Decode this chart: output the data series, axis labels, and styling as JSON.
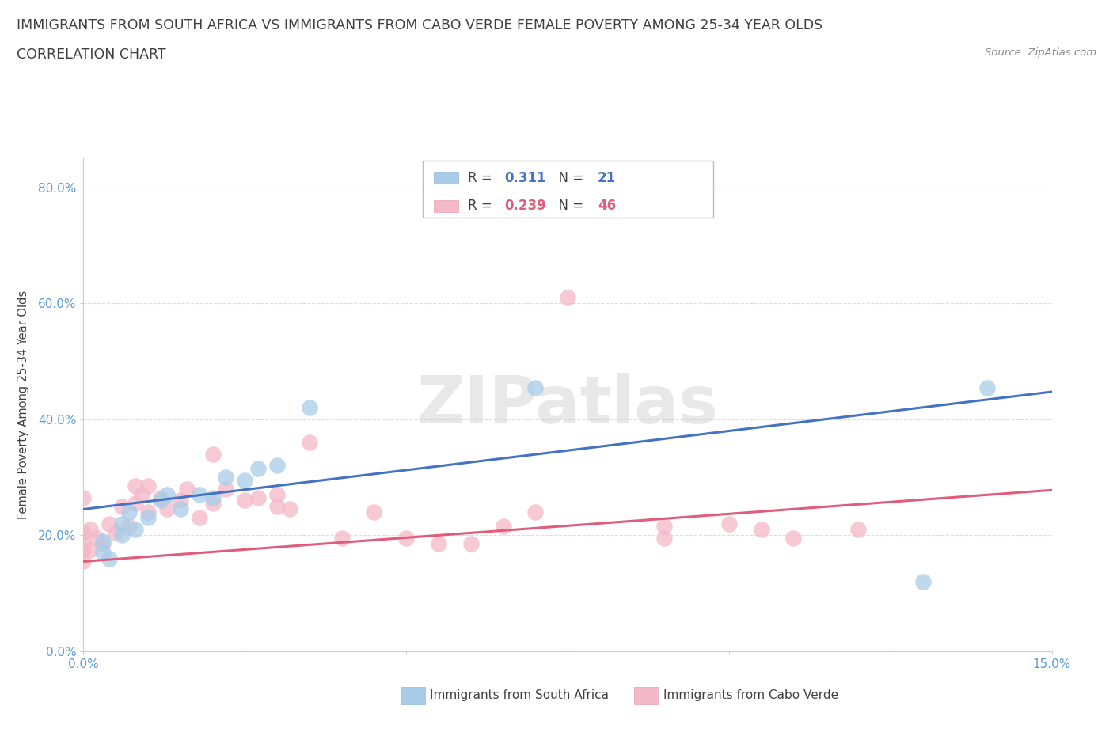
{
  "title_line1": "IMMIGRANTS FROM SOUTH AFRICA VS IMMIGRANTS FROM CABO VERDE FEMALE POVERTY AMONG 25-34 YEAR OLDS",
  "title_line2": "CORRELATION CHART",
  "source": "Source: ZipAtlas.com",
  "ylabel": "Female Poverty Among 25-34 Year Olds",
  "xlim": [
    0.0,
    0.15
  ],
  "ylim": [
    0.0,
    0.85
  ],
  "yticks": [
    0.0,
    0.2,
    0.4,
    0.6,
    0.8
  ],
  "ytick_labels": [
    "0.0%",
    "20.0%",
    "40.0%",
    "60.0%",
    "80.0%"
  ],
  "watermark": "ZIPatlas",
  "south_africa_color": "#A8CCE8",
  "cabo_verde_color": "#F4B8C8",
  "south_africa_line_color": "#4472C4",
  "cabo_verde_line_color": "#E05C7A",
  "sa_x": [
    0.003,
    0.003,
    0.004,
    0.006,
    0.006,
    0.007,
    0.008,
    0.01,
    0.012,
    0.013,
    0.015,
    0.018,
    0.02,
    0.022,
    0.025,
    0.027,
    0.03,
    0.035,
    0.07,
    0.13,
    0.14
  ],
  "sa_y": [
    0.17,
    0.19,
    0.16,
    0.2,
    0.22,
    0.24,
    0.21,
    0.23,
    0.26,
    0.27,
    0.245,
    0.27,
    0.265,
    0.3,
    0.295,
    0.315,
    0.32,
    0.42,
    0.455,
    0.12,
    0.455
  ],
  "cv_x": [
    0.0,
    0.0,
    0.0,
    0.0,
    0.0,
    0.001,
    0.001,
    0.002,
    0.003,
    0.004,
    0.005,
    0.006,
    0.007,
    0.008,
    0.008,
    0.009,
    0.01,
    0.01,
    0.012,
    0.013,
    0.015,
    0.016,
    0.018,
    0.02,
    0.02,
    0.022,
    0.025,
    0.027,
    0.03,
    0.03,
    0.032,
    0.035,
    0.04,
    0.045,
    0.05,
    0.055,
    0.06,
    0.065,
    0.07,
    0.075,
    0.09,
    0.09,
    0.1,
    0.105,
    0.11,
    0.12
  ],
  "cv_y": [
    0.155,
    0.175,
    0.185,
    0.205,
    0.265,
    0.175,
    0.21,
    0.195,
    0.185,
    0.22,
    0.205,
    0.25,
    0.215,
    0.255,
    0.285,
    0.27,
    0.24,
    0.285,
    0.265,
    0.245,
    0.26,
    0.28,
    0.23,
    0.255,
    0.34,
    0.28,
    0.26,
    0.265,
    0.25,
    0.27,
    0.245,
    0.36,
    0.195,
    0.24,
    0.195,
    0.185,
    0.185,
    0.215,
    0.24,
    0.61,
    0.195,
    0.215,
    0.22,
    0.21,
    0.195,
    0.21
  ],
  "background_color": "#FFFFFF",
  "grid_color": "#DDDDDD",
  "title_fontsize": 12.5,
  "axis_label_fontsize": 10.5,
  "tick_fontsize": 11,
  "tick_color": "#5B9BD5",
  "title_color": "#404040",
  "source_color": "#888888",
  "legend_text_color": "#404040",
  "legend_value_color": "#4472C4",
  "sa_line_intercept": 0.245,
  "sa_line_slope": 1.35,
  "cv_line_intercept": 0.155,
  "cv_line_slope": 0.82
}
